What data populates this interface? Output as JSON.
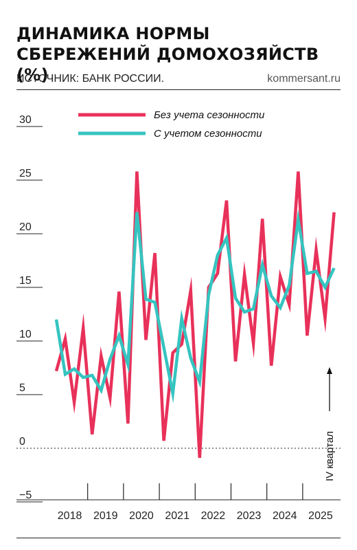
{
  "header": {
    "title": "ДИНАМИКА НОРМЫ СБЕРЕЖЕНИЙ ДОМОХОЗЯЙСТВ (%)",
    "source": "ИСТОЧНИК: БАНК РОССИИ.",
    "site": "kommersant.ru"
  },
  "chart_data": {
    "type": "line",
    "ylim": [
      -5,
      30
    ],
    "yticks": [
      "30",
      "25",
      "20",
      "15",
      "10",
      "5",
      "0",
      "−5"
    ],
    "ytick_values": [
      30,
      25,
      20,
      15,
      10,
      5,
      0,
      -5
    ],
    "year_labels": [
      "2018",
      "2019",
      "2020",
      "2021",
      "2022",
      "2023",
      "2024",
      "2025"
    ],
    "annotation": "IV квартал",
    "grid": "horizontal",
    "legend_position": "top",
    "series": [
      {
        "name": "Без учета сезонности",
        "color": "#e8315a",
        "values": [
          7.2,
          10.2,
          4.3,
          11.2,
          1.3,
          8.6,
          4.7,
          14.6,
          2.3,
          25.8,
          10.1,
          18.2,
          0.7,
          8.9,
          9.7,
          14.7,
          -0.9,
          15.0,
          16.3,
          23.1,
          8.1,
          16.2,
          9.8,
          21.4,
          7.7,
          16.0,
          13.4,
          25.8,
          10.5,
          18.5,
          12.1,
          22.0
        ]
      },
      {
        "name": "С учетом сезонности",
        "color": "#35c4c0",
        "values": [
          12.0,
          6.9,
          7.4,
          6.6,
          6.8,
          5.4,
          8.3,
          10.5,
          7.8,
          22.0,
          13.9,
          13.6,
          9.4,
          5.1,
          12.1,
          8.4,
          6.2,
          14.3,
          18.0,
          19.6,
          14.0,
          12.7,
          13.0,
          17.1,
          14.2,
          13.1,
          15.2,
          21.3,
          16.3,
          16.5,
          15.0,
          16.8
        ]
      }
    ]
  }
}
